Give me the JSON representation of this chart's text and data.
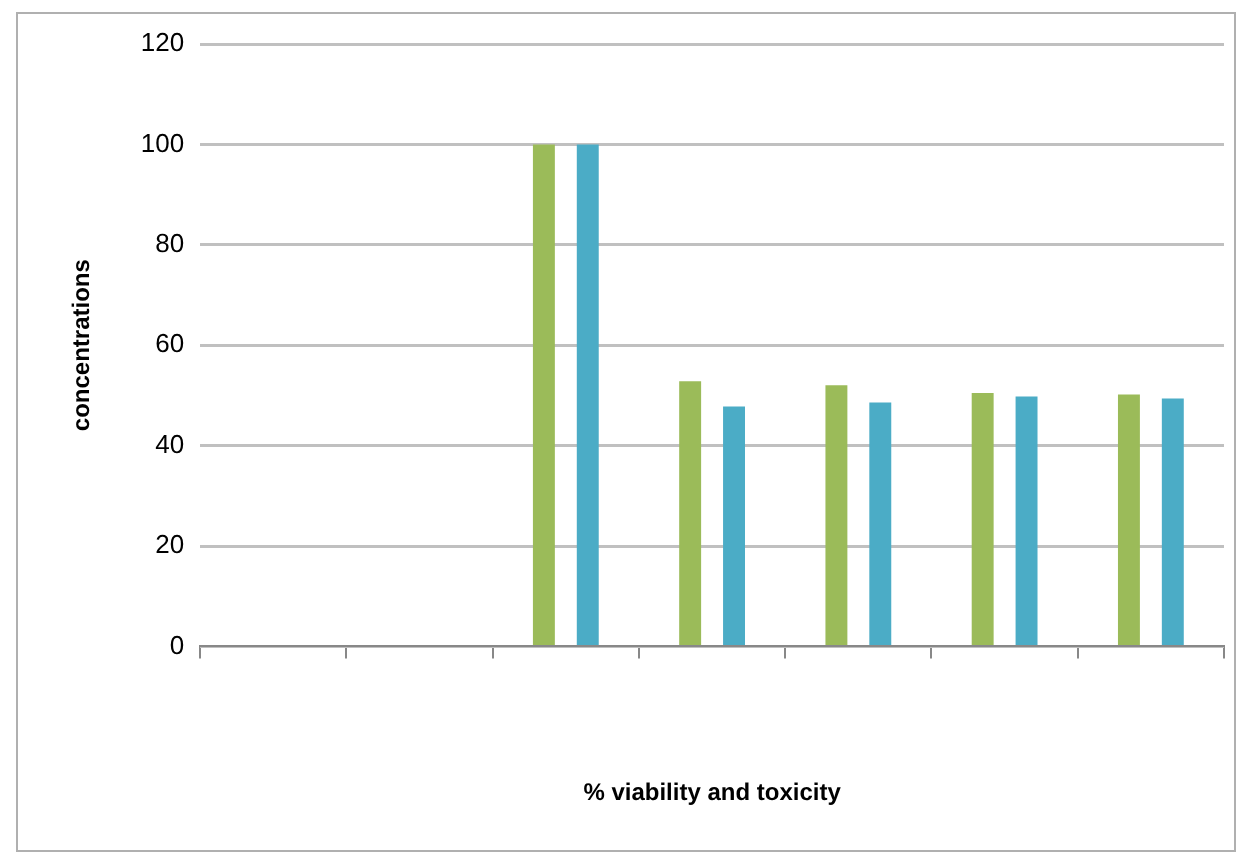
{
  "chart_data": {
    "type": "bar",
    "xlabel": "% viability and toxicity",
    "ylabel": "concentrations",
    "categories": [
      null,
      null,
      null,
      null,
      null,
      null,
      null
    ],
    "series": [
      {
        "color": "#9bbb59",
        "values": [
          null,
          null,
          100,
          52.8,
          52,
          50.5,
          50.2
        ]
      },
      {
        "color": "#4bacc6",
        "values": [
          null,
          null,
          100,
          47.8,
          48.6,
          49.8,
          49.4
        ]
      }
    ],
    "ylim": [
      0,
      120
    ],
    "yticks": [
      0,
      20,
      40,
      60,
      80,
      100,
      120
    ],
    "grid": "y",
    "legend": false
  }
}
